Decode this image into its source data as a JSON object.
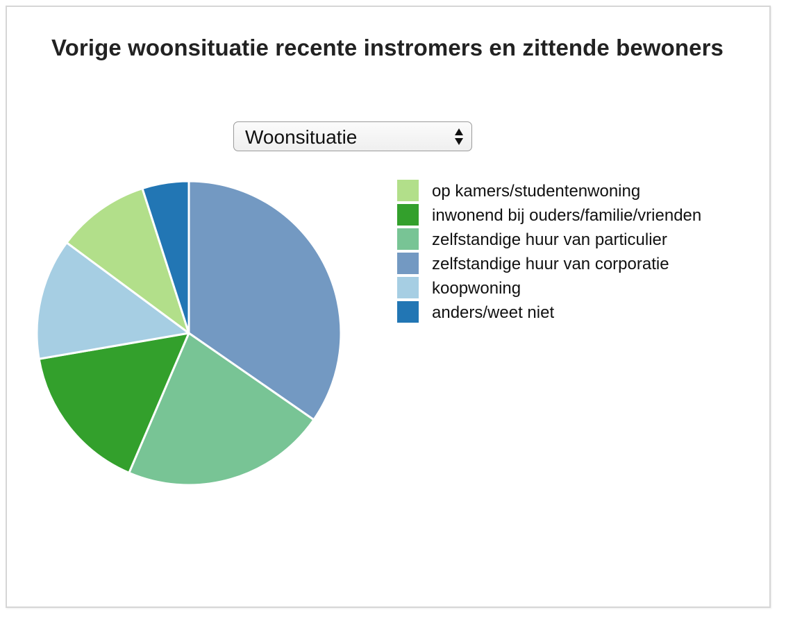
{
  "chart_data": {
    "type": "pie",
    "title": "Vorige woonsituatie recente instromers en zittende bewoners",
    "dropdown": {
      "selected": "Woonsituatie"
    },
    "legend_position": "right",
    "categories": [
      "op kamers/studentenwoning",
      "inwonend bij ouders/familie/vrienden",
      "zelfstandige huur van particulier",
      "zelfstandige huur van corporatie",
      "koopwoning",
      "anders/weet niet"
    ],
    "values": [
      10,
      16,
      22,
      35,
      13,
      5
    ],
    "colors": [
      "#b2df8a",
      "#33a02c",
      "#78c495",
      "#7399c2",
      "#a6cee3",
      "#2276b4"
    ],
    "draw_order": [
      3,
      2,
      1,
      4,
      0,
      5
    ]
  }
}
